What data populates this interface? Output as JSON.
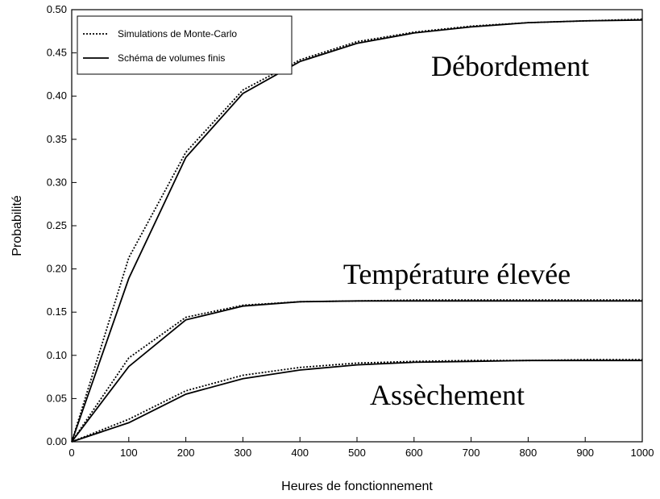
{
  "chart_data": {
    "type": "line",
    "xlabel": "Heures de fonctionnement",
    "ylabel": "Probabilité",
    "x": [
      0,
      100,
      200,
      300,
      400,
      500,
      600,
      700,
      800,
      900,
      1000
    ],
    "xlim": [
      0,
      1000
    ],
    "ylim": [
      0,
      0.5
    ],
    "xticks": [
      0,
      100,
      200,
      300,
      400,
      500,
      600,
      700,
      800,
      900,
      1000
    ],
    "yticks": [
      {
        "value": 0,
        "label": "0.00"
      },
      {
        "value": 0.05,
        "label": "0.05"
      },
      {
        "value": 0.1,
        "label": "0.10"
      },
      {
        "value": 0.15,
        "label": "0.15"
      },
      {
        "value": 0.2,
        "label": "0.20"
      },
      {
        "value": 0.25,
        "label": "0.25"
      },
      {
        "value": 0.3,
        "label": "0.30"
      },
      {
        "value": 0.35,
        "label": "0.35"
      },
      {
        "value": 0.4,
        "label": "0.40"
      },
      {
        "value": 0.45,
        "label": "0.45"
      },
      {
        "value": 0.5,
        "label": "0.50"
      }
    ],
    "annotations": [
      "Débordement",
      "Température élevée",
      "Assèchement"
    ],
    "series": [
      {
        "name": "Simulations de Monte-Carlo",
        "style": "dotted",
        "color": "#000000",
        "values": [
          [
            0,
            0.213,
            0.335,
            0.407,
            0.442,
            0.463,
            0.474,
            0.481,
            0.485,
            0.487,
            0.489
          ],
          [
            0,
            0.097,
            0.144,
            0.158,
            0.162,
            0.163,
            0.164,
            0.164,
            0.164,
            0.164,
            0.164
          ],
          [
            0,
            0.026,
            0.059,
            0.077,
            0.086,
            0.091,
            0.093,
            0.094,
            0.094,
            0.095,
            0.095
          ]
        ]
      },
      {
        "name": "Schéma de volumes finis",
        "style": "solid",
        "color": "#000000",
        "values": [
          [
            0,
            0.189,
            0.329,
            0.403,
            0.44,
            0.461,
            0.473,
            0.48,
            0.485,
            0.487,
            0.488
          ],
          [
            0,
            0.087,
            0.141,
            0.157,
            0.162,
            0.163,
            0.163,
            0.163,
            0.163,
            0.163,
            0.163
          ],
          [
            0,
            0.022,
            0.055,
            0.073,
            0.083,
            0.089,
            0.092,
            0.093,
            0.094,
            0.094,
            0.094
          ]
        ]
      }
    ]
  }
}
